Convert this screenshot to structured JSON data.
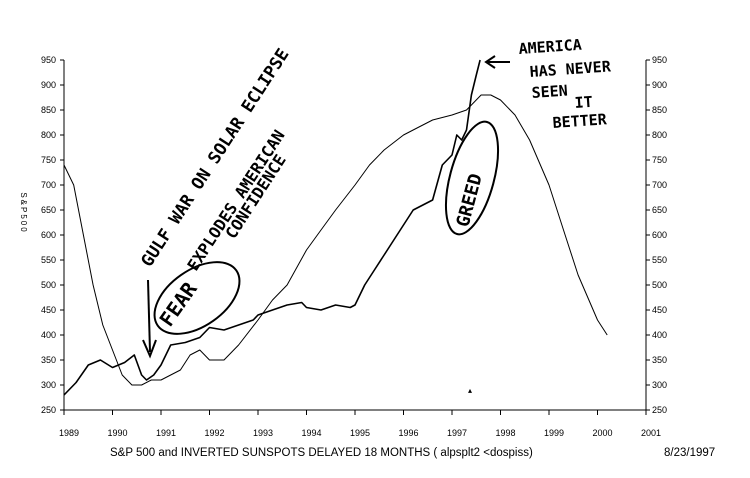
{
  "chart_data": {
    "type": "line",
    "title": "",
    "caption": "S&P 500 and INVERTED SUNSPOTS DELAYED 18 MONTHS ( alpsplt2 <dospiss)",
    "date": "8/23/1997",
    "ylabel": "S&P500",
    "ylim": [
      250,
      950
    ],
    "xlim": [
      1989,
      2001
    ],
    "grid": false,
    "legend": "none",
    "yticks": [
      250,
      300,
      350,
      400,
      450,
      500,
      550,
      600,
      650,
      700,
      750,
      800,
      850,
      900,
      950
    ],
    "xticks": [
      1989,
      1990,
      1991,
      1992,
      1993,
      1994,
      1995,
      1996,
      1997,
      1998,
      1999,
      2000,
      2001
    ],
    "series": [
      {
        "key": "sp500",
        "color": "#000000",
        "x": [
          1989.0,
          1989.25,
          1989.5,
          1989.75,
          1990.0,
          1990.25,
          1990.45,
          1990.6,
          1990.7,
          1990.85,
          1991.0,
          1991.2,
          1991.5,
          1991.8,
          1992.0,
          1992.3,
          1992.6,
          1992.9,
          1993.0,
          1993.3,
          1993.6,
          1993.9,
          1994.0,
          1994.3,
          1994.6,
          1994.9,
          1995.0,
          1995.2,
          1995.4,
          1995.6,
          1995.8,
          1996.0,
          1996.2,
          1996.4,
          1996.6,
          1996.8,
          1997.0,
          1997.1,
          1997.2,
          1997.3,
          1997.4,
          1997.5,
          1997.58
        ],
        "y": [
          280,
          305,
          340,
          350,
          335,
          345,
          360,
          320,
          310,
          320,
          340,
          380,
          385,
          395,
          415,
          410,
          420,
          430,
          440,
          450,
          460,
          465,
          455,
          450,
          460,
          455,
          460,
          500,
          530,
          560,
          590,
          620,
          650,
          660,
          670,
          740,
          760,
          800,
          790,
          810,
          880,
          920,
          950
        ]
      },
      {
        "key": "sunspots",
        "color": "#000000",
        "x": [
          1989.0,
          1989.2,
          1989.4,
          1989.6,
          1989.8,
          1990.0,
          1990.2,
          1990.4,
          1990.6,
          1990.8,
          1991.0,
          1991.2,
          1991.4,
          1991.6,
          1991.8,
          1992.0,
          1992.3,
          1992.6,
          1993.0,
          1993.3,
          1993.6,
          1994.0,
          1994.3,
          1994.6,
          1995.0,
          1995.3,
          1995.6,
          1996.0,
          1996.3,
          1996.6,
          1997.0,
          1997.3,
          1997.6,
          1997.8,
          1998.0,
          1998.3,
          1998.6,
          1999.0,
          1999.3,
          1999.6,
          2000.0,
          2000.2
        ],
        "y": [
          740,
          700,
          600,
          500,
          420,
          370,
          320,
          300,
          300,
          310,
          310,
          320,
          330,
          360,
          370,
          350,
          350,
          380,
          430,
          470,
          500,
          570,
          610,
          650,
          700,
          740,
          770,
          800,
          815,
          830,
          840,
          850,
          880,
          880,
          870,
          840,
          790,
          700,
          610,
          520,
          430,
          400
        ]
      }
    ]
  },
  "annotations": {
    "gulf_war": [
      "GULF WAR ON SOLAR ECLIPSE",
      "EXPLODES AMERICAN",
      "CONFIDENCE"
    ],
    "fear": "FEAR",
    "greed": "GREED",
    "better": [
      "AMERICA",
      "HAS NEVER",
      "SEEN",
      "IT",
      "BETTER"
    ]
  }
}
